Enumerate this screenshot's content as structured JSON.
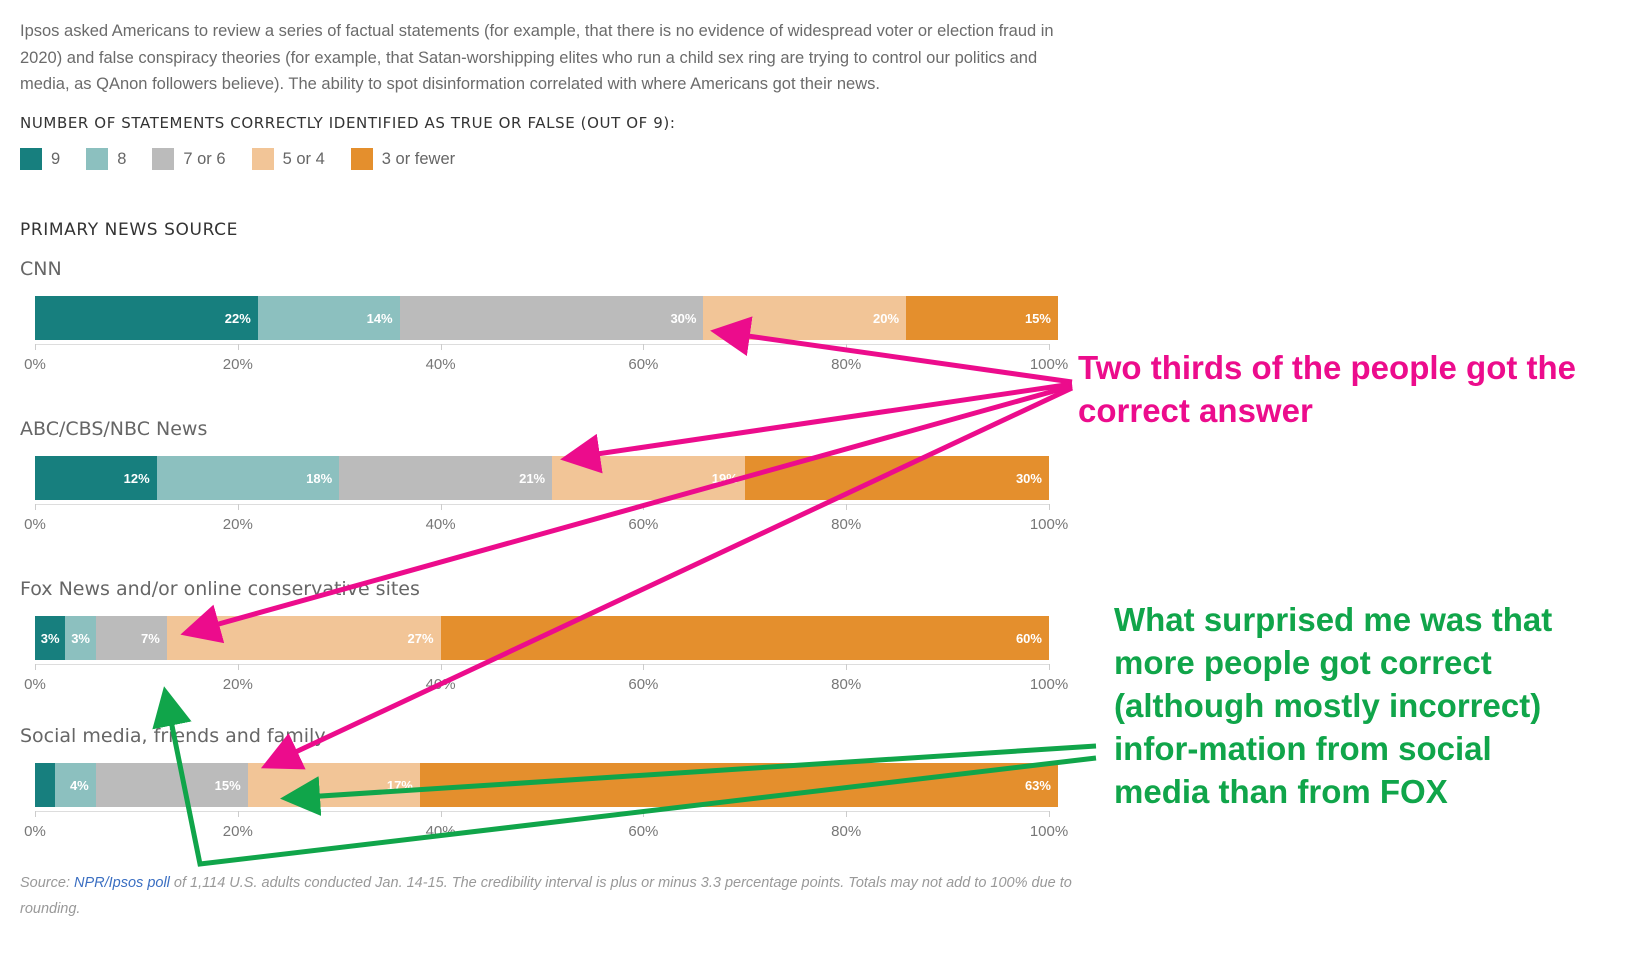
{
  "intro": "Ipsos asked Americans to review a series of factual statements (for example, that there is no evidence of widespread voter or election fraud in 2020) and false conspiracy theories (for example, that Satan-worshipping elites who run a child sex ring are trying to control our politics and media, as QAnon followers believe). The ability to spot disinformation correlated with where Americans got their news.",
  "legend_title": "NUMBER OF STATEMENTS CORRECTLY IDENTIFIED AS TRUE OR FALSE (OUT OF 9):",
  "section_title": "PRIMARY NEWS SOURCE",
  "source": {
    "prefix": "Source: ",
    "link": "NPR/Ipsos poll",
    "suffix": " of 1,114 U.S. adults conducted Jan. 14-15. The credibility interval is plus or minus 3.3 percentage points. Totals may not add to 100% due to rounding."
  },
  "annotations": {
    "pink": "Two thirds of the people got the correct answer",
    "green": "What surprised me was that more people got correct (although mostly incorrect) infor-mation from social media than from FOX",
    "pink_color": "#ec0c8c",
    "green_color": "#10a54a"
  },
  "chart_data": {
    "type": "bar",
    "orientation": "horizontal",
    "stacked": true,
    "xlabel": "",
    "ylabel": "",
    "xlim": [
      0,
      100
    ],
    "ticks": [
      "0%",
      "20%",
      "40%",
      "60%",
      "80%",
      "100%"
    ],
    "series": [
      {
        "name": "9",
        "color": "#177f7e"
      },
      {
        "name": "8",
        "color": "#8cc0bf"
      },
      {
        "name": "7 or 6",
        "color": "#bbbbbb"
      },
      {
        "name": "5 or 4",
        "color": "#f2c597"
      },
      {
        "name": "3 or fewer",
        "color": "#e48f2d"
      }
    ],
    "categories": [
      "CNN",
      "ABC/CBS/NBC News",
      "Fox News and/or online conservative sites",
      "Social media, friends and family"
    ],
    "values": [
      [
        22,
        14,
        30,
        20,
        15
      ],
      [
        12,
        18,
        21,
        19,
        30
      ],
      [
        3,
        3,
        7,
        27,
        60
      ],
      [
        2,
        4,
        15,
        17,
        63
      ]
    ],
    "labels": [
      [
        "22%",
        "14%",
        "30%",
        "20%",
        "15%"
      ],
      [
        "12%",
        "18%",
        "21%",
        "19%",
        "30%"
      ],
      [
        "3%",
        "3%",
        "7%",
        "27%",
        "60%"
      ],
      [
        "",
        "4%",
        "15%",
        "17%",
        "63%"
      ]
    ]
  }
}
